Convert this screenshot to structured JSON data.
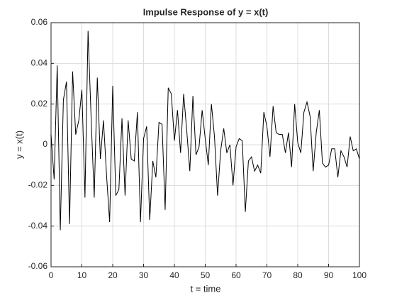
{
  "chart_data": {
    "type": "line",
    "title": "Impulse Response of y = x(t)",
    "xlabel": "t = time",
    "ylabel": "y = x(t)",
    "x": [
      0,
      1,
      2,
      3,
      4,
      5,
      6,
      7,
      8,
      9,
      10,
      11,
      12,
      13,
      14,
      15,
      16,
      17,
      18,
      19,
      20,
      21,
      22,
      23,
      24,
      25,
      26,
      27,
      28,
      29,
      30,
      31,
      32,
      33,
      34,
      35,
      36,
      37,
      38,
      39,
      40,
      41,
      42,
      43,
      44,
      45,
      46,
      47,
      48,
      49,
      50,
      51,
      52,
      53,
      54,
      55,
      56,
      57,
      58,
      59,
      60,
      61,
      62,
      63,
      64,
      65,
      66,
      67,
      68,
      69,
      70,
      71,
      72,
      73,
      74,
      75,
      76,
      77,
      78,
      79,
      80,
      81,
      82,
      83,
      84,
      85,
      86,
      87,
      88,
      89,
      90,
      91,
      92,
      93,
      94,
      95,
      96,
      97,
      98,
      99,
      100
    ],
    "series": [
      {
        "color": "#000000",
        "values": [
          0.005,
          -0.017,
          0.039,
          -0.042,
          0.022,
          0.031,
          -0.039,
          0.036,
          0.005,
          0.012,
          0.027,
          -0.026,
          0.056,
          0.013,
          -0.026,
          0.033,
          -0.007,
          0.012,
          -0.015,
          -0.038,
          0.029,
          -0.025,
          -0.022,
          0.013,
          -0.025,
          0.012,
          -0.007,
          -0.008,
          0.016,
          -0.038,
          0.003,
          0.009,
          -0.037,
          -0.008,
          -0.016,
          0.011,
          0.01,
          -0.032,
          0.028,
          0.025,
          0.002,
          0.017,
          -0.004,
          0.025,
          0.007,
          -0.013,
          0.024,
          -0.005,
          -0.001,
          0.017,
          0.003,
          -0.01,
          0.02,
          0.004,
          -0.025,
          -0.003,
          0.008,
          -0.004,
          0.0,
          -0.02,
          -0.001,
          0.003,
          0.002,
          -0.033,
          -0.008,
          -0.006,
          -0.013,
          -0.01,
          -0.014,
          0.016,
          0.009,
          -0.006,
          0.019,
          0.006,
          0.005,
          0.005,
          -0.004,
          0.006,
          -0.011,
          0.02,
          0.001,
          -0.004,
          0.016,
          0.021,
          0.014,
          -0.013,
          0.006,
          0.017,
          -0.009,
          -0.011,
          -0.01,
          -0.002,
          -0.002,
          -0.016,
          -0.003,
          -0.006,
          -0.011,
          0.004,
          -0.003,
          -0.002,
          -0.007
        ]
      }
    ],
    "xlim": [
      0,
      100
    ],
    "xticks": [
      0,
      10,
      20,
      30,
      40,
      50,
      60,
      70,
      80,
      90,
      100
    ],
    "ylim": [
      -0.06,
      0.06
    ],
    "yticks": [
      -0.06,
      -0.04,
      -0.02,
      0,
      0.02,
      0.04,
      0.06
    ],
    "grid": true
  }
}
